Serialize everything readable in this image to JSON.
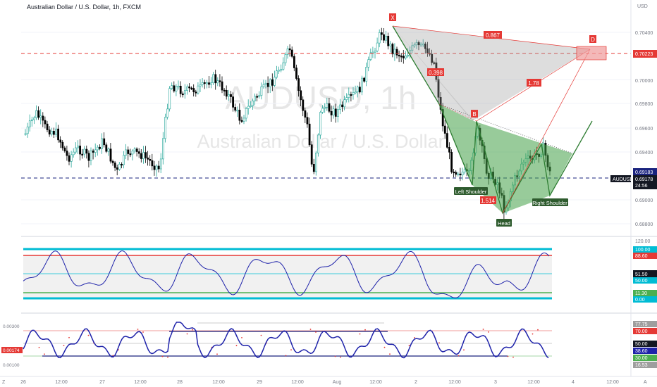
{
  "header": {
    "title": "Australian Dollar / U.S. Dollar, 1h, FXCM"
  },
  "watermark": {
    "line1": "AUDUSD, 1h",
    "line2": "Australian Dollar / U.S. Dollar"
  },
  "price_axis": {
    "currency": "USD",
    "ticks": [
      "0.70400",
      "0.70000",
      "0.69800",
      "0.69600",
      "0.69400",
      "0.69000",
      "0.68800"
    ],
    "badges": {
      "resistance": "0.70223",
      "bid": "0.69183",
      "symbol": "AUDUSD",
      "last": "0.69178",
      "countdown": "24:56"
    }
  },
  "rsi_axis": {
    "ticks": [
      "120.00",
      "100.00",
      "88.60",
      "51.50",
      "50.00",
      "11.30",
      "0.00"
    ]
  },
  "stoch_axis": {
    "ticks": [
      "0.00300",
      "0.00174",
      "0.00100"
    ],
    "right_ticks": [
      "77.75",
      "70.00",
      "50.00",
      "38.60",
      "30.00",
      "16.53"
    ]
  },
  "time_axis": {
    "labels": [
      "26",
      "12:00",
      "27",
      "12:00",
      "28",
      "12:00",
      "29",
      "12:00",
      "Aug",
      "12:00",
      "2",
      "12:00",
      "3",
      "12:00",
      "4",
      "12:00"
    ],
    "left_glyph": "Z",
    "right_glyph": "A"
  },
  "pattern": {
    "labels": {
      "x": "X",
      "b": "B",
      "d": "D",
      "ratio_xd": "0.867",
      "ratio_xb": "0.398",
      "ratio_bd": "1.78",
      "ratio_ab": "1.514"
    },
    "hs": {
      "left": "Left Shoulder",
      "head": "Head",
      "right": "Right Shoulder"
    }
  },
  "colors": {
    "up": "#26a69a",
    "down": "#000000",
    "resistance": "#e53935",
    "support": "#1a237e",
    "rsi_line": "#1e22aa",
    "cyan": "#00bcd4",
    "green": "#4caf50",
    "red_marker": "#e53935"
  }
}
